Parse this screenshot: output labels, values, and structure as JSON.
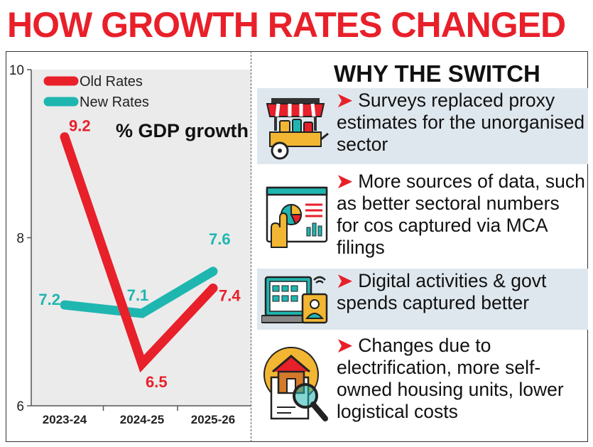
{
  "title": "HOW GROWTH RATES CHANGED",
  "colors": {
    "accent": "#e8202a",
    "old": "#e8202a",
    "new": "#1fb6b0",
    "panel": "#ebebeb",
    "shade": "#dfe7ee"
  },
  "chart_data": {
    "type": "line",
    "title": "% GDP growth",
    "categories": [
      "2023-24",
      "2024-25",
      "2025-26"
    ],
    "series": [
      {
        "name": "Old Rates",
        "values": [
          9.2,
          6.5,
          7.4
        ],
        "labels": [
          "9.2",
          "6.5",
          "7.4"
        ],
        "color": "#e8202a"
      },
      {
        "name": "New Rates",
        "values": [
          7.2,
          7.1,
          7.6
        ],
        "labels": [
          "7.2",
          "7.1",
          "7.6"
        ],
        "color": "#1fb6b0"
      }
    ],
    "yticks": [
      "10",
      "8",
      "6"
    ],
    "ylim": [
      6,
      10
    ],
    "xlabel": "",
    "ylabel": ""
  },
  "why": {
    "title": "WHY THE SWITCH",
    "arrow": "➤",
    "items": [
      {
        "icon": "street-vendor-cart-icon",
        "text": "Surveys replaced proxy estimates for the unorganised sector"
      },
      {
        "icon": "data-dashboard-icon",
        "text": "More sources of data, such as better sectoral numbers for cos captured via MCA filings"
      },
      {
        "icon": "digital-devices-icon",
        "text": "Digital activities & govt spends captured better"
      },
      {
        "icon": "house-search-icon",
        "text": "Changes due to electrification, more self-owned housing units, lower logistical costs"
      }
    ]
  }
}
